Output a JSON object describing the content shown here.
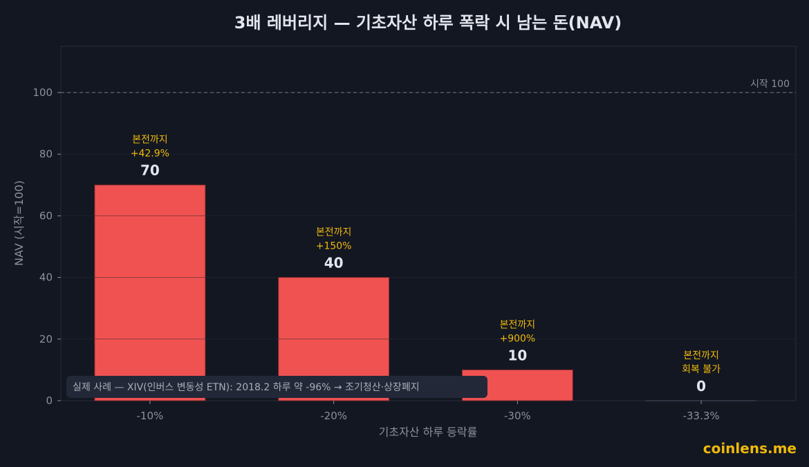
{
  "chart_data": {
    "type": "bar",
    "title": "3배 레버리지 — 기초자산 하루 폭락 시 남는 돈(NAV)",
    "xlabel": "기초자산 하루 등락률",
    "ylabel": "NAV (시작=100)",
    "categories": [
      "-10%",
      "-20%",
      "-30%",
      "-33.3%"
    ],
    "values": [
      70,
      40,
      10,
      0
    ],
    "value_labels": [
      "70",
      "40",
      "10",
      "0"
    ],
    "annotations": [
      [
        "본전까지",
        "+42.9%"
      ],
      [
        "본전까지",
        "+150%"
      ],
      [
        "본전까지",
        "+900%"
      ],
      [
        "본전까지",
        "회복 불가"
      ]
    ],
    "ylim": [
      0,
      115
    ],
    "yticks": [
      0,
      20,
      40,
      60,
      80,
      100
    ],
    "reference_line": {
      "value": 100,
      "label": "시작 100"
    },
    "note": "실제 사례 — XIV(인버스 변동성 ETN): 2018.2 하루 약 -96% → 조기청산·상장폐지",
    "grid": true,
    "colors": {
      "bar": "#f05252",
      "background": "#131722",
      "annotation": "#f0b90b"
    }
  },
  "brand": "coinlens.me"
}
